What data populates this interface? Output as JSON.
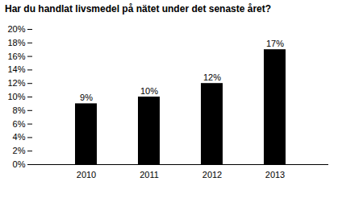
{
  "chart_data": {
    "type": "bar",
    "title": "Har du handlat livsmedel på nätet under det senaste året?",
    "categories": [
      "2010",
      "2011",
      "2012",
      "2013"
    ],
    "values": [
      0.09,
      0.1,
      0.12,
      0.17
    ],
    "value_labels": [
      "9%",
      "10%",
      "12%",
      "17%"
    ],
    "data_labels": true,
    "ylim": [
      0,
      0.2
    ],
    "yticks": [
      {
        "value": 0.0,
        "label": "0%"
      },
      {
        "value": 0.02,
        "label": "2%"
      },
      {
        "value": 0.04,
        "label": "4%"
      },
      {
        "value": 0.06,
        "label": "6%"
      },
      {
        "value": 0.08,
        "label": "8%"
      },
      {
        "value": 0.1,
        "label": "10%"
      },
      {
        "value": 0.12,
        "label": "12%"
      },
      {
        "value": 0.14,
        "label": "14%"
      },
      {
        "value": 0.16,
        "label": "16%"
      },
      {
        "value": 0.18,
        "label": "18%"
      },
      {
        "value": 0.2,
        "label": "20%"
      }
    ],
    "grid": false
  }
}
